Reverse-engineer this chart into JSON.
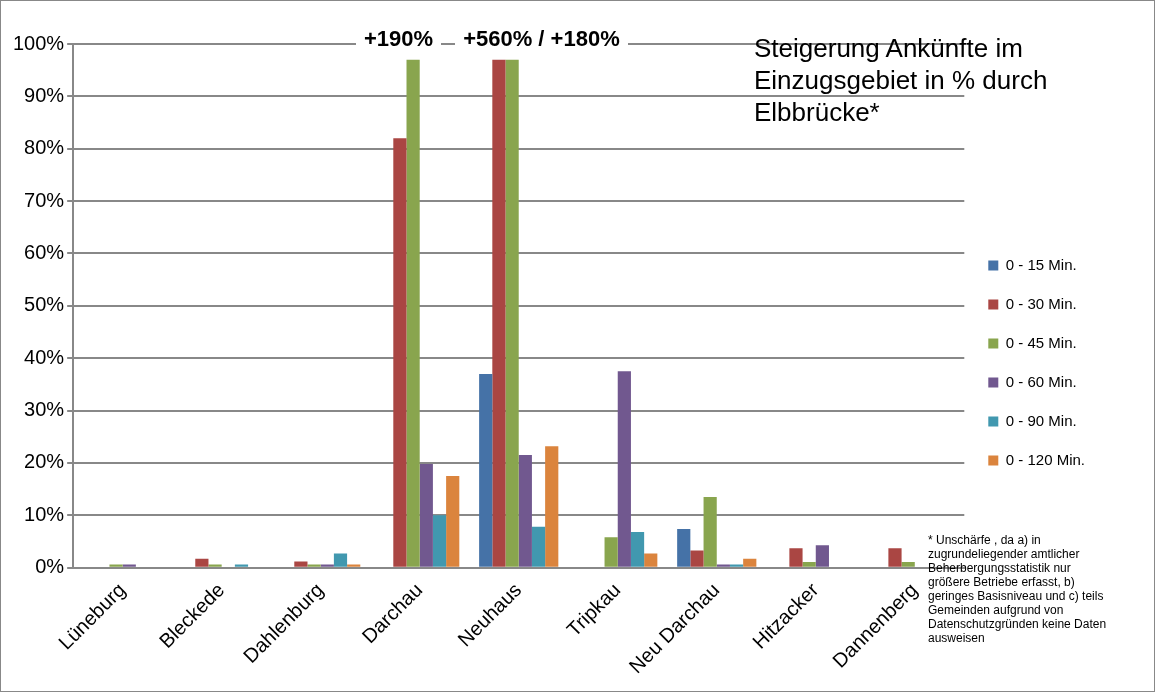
{
  "chart_data": {
    "type": "bar",
    "title": "Steigerung Ankünfte im Einzugsgebiet in % durch Elbbrücke*",
    "categories": [
      "Lüneburg",
      "Bleckede",
      "Dahlenburg",
      "Darchau",
      "Neuhaus",
      "Tripkau",
      "Neu Darchau",
      "Hitzacker",
      "Dannenberg"
    ],
    "series": [
      {
        "name": "0 - 15 Min.",
        "color": "#4572a7",
        "values": [
          null,
          null,
          null,
          null,
          37,
          null,
          7.4,
          null,
          null
        ]
      },
      {
        "name": "0 - 30 Min.",
        "color": "#aa4643",
        "values": [
          null,
          1.7,
          1.2,
          82,
          97,
          null,
          3.3,
          3.7,
          3.7
        ]
      },
      {
        "name": "0 - 45 Min.",
        "color": "#89a54e",
        "values": [
          0.6,
          0.6,
          0.6,
          97,
          97,
          5.8,
          13.5,
          1.1,
          1.1
        ]
      },
      {
        "name": "0 - 60 Min.",
        "color": "#71588f",
        "values": [
          0.6,
          null,
          0.6,
          19.8,
          21.5,
          37.5,
          0.6,
          4.3,
          null
        ]
      },
      {
        "name": "0 - 90 Min.",
        "color": "#4198af",
        "values": [
          null,
          0.6,
          2.7,
          10,
          7.8,
          6.8,
          0.6,
          null,
          null
        ]
      },
      {
        "name": "0 - 120 Min.",
        "color": "#db843d",
        "values": [
          null,
          null,
          0.6,
          17.5,
          23.2,
          2.7,
          1.7,
          null,
          null
        ]
      }
    ],
    "ylim": [
      0,
      100
    ],
    "yticks": [
      {
        "value": 0,
        "label": "0%"
      },
      {
        "value": 10,
        "label": "10%"
      },
      {
        "value": 20,
        "label": "20%"
      },
      {
        "value": 30,
        "label": "30%"
      },
      {
        "value": 40,
        "label": "40%"
      },
      {
        "value": 50,
        "label": "50%"
      },
      {
        "value": 60,
        "label": "60%"
      },
      {
        "value": 70,
        "label": "70%"
      },
      {
        "value": 80,
        "label": "80%"
      },
      {
        "value": 90,
        "label": "90%"
      },
      {
        "value": 100,
        "label": "100%"
      }
    ],
    "grid": "y",
    "legend": "right",
    "annotations": [
      "+190%",
      "+560% / +180%",
      "* Unschärfe , da a) in zugrundeliegender amtlicher Beherbergungsstatistik nur größere Betriebe erfasst, b) geringes Basisniveau und c) teils Gemeinden aufgrund von Datenschutzgründen keine Daten ausweisen"
    ]
  }
}
